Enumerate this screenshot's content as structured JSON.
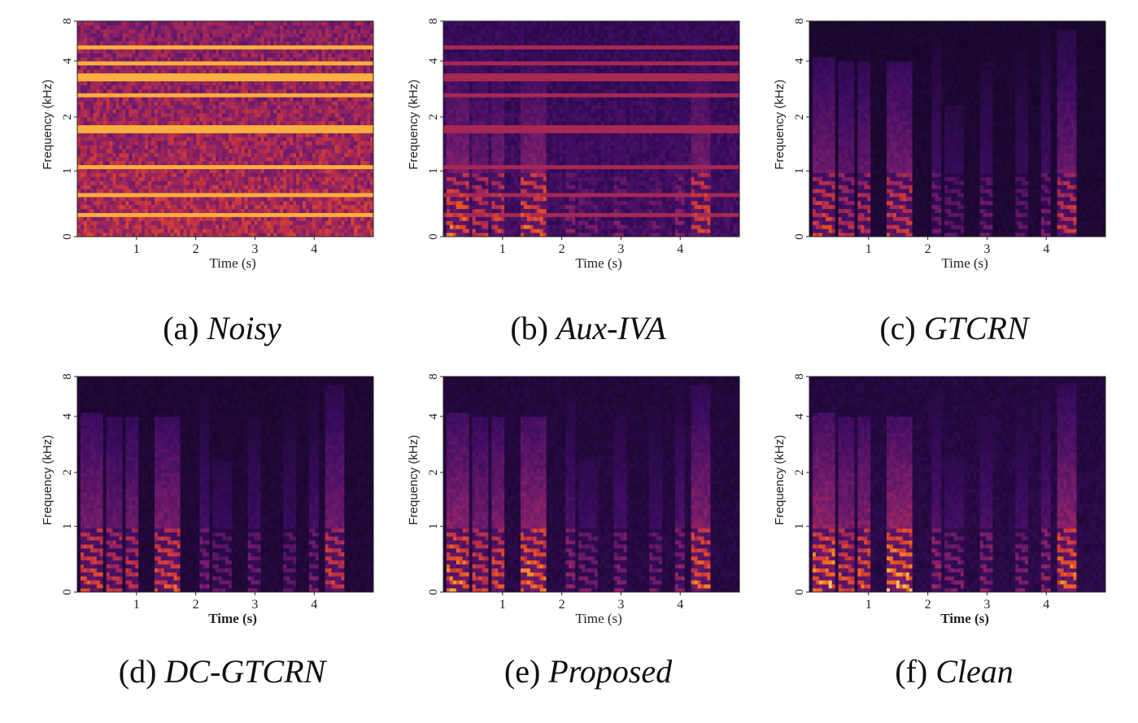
{
  "figure": {
    "panels": [
      {
        "id": "a",
        "label": "(a)",
        "method": "Noisy",
        "xlabel": "Time (s)",
        "ylabel": "Frequency (kHz)",
        "xlabel_bold": false,
        "xticks": [
          "1",
          "2",
          "3",
          "4"
        ],
        "yticks": [
          "0",
          "1",
          "2",
          "4",
          "8"
        ],
        "noise_level": 0.78,
        "speech_level": 0.35,
        "hum_lines": true
      },
      {
        "id": "b",
        "label": "(b)",
        "method": "Aux-IVA",
        "xlabel": "Time (s)",
        "ylabel": "Frequency (kHz)",
        "xlabel_bold": false,
        "xticks": [
          "1",
          "2",
          "3",
          "4"
        ],
        "yticks": [
          "0",
          "1",
          "2",
          "4",
          "8"
        ],
        "noise_level": 0.33,
        "speech_level": 0.85,
        "hum_lines": true
      },
      {
        "id": "c",
        "label": "(c)",
        "method": "GTCRN",
        "xlabel": "Time (s)",
        "ylabel": "Frequency (kHz)",
        "xlabel_bold": false,
        "xticks": [
          "1",
          "2",
          "3",
          "4"
        ],
        "yticks": [
          "0",
          "1",
          "2",
          "4",
          "8"
        ],
        "noise_level": 0.12,
        "speech_level": 0.75,
        "hum_lines": false
      },
      {
        "id": "d",
        "label": "(d)",
        "method": "DC-GTCRN",
        "xlabel": "Time (s)",
        "ylabel": "Frequency (kHz)",
        "xlabel_bold": true,
        "xticks": [
          "1",
          "2",
          "3",
          "4"
        ],
        "yticks": [
          "0",
          "1",
          "2",
          "4",
          "8"
        ],
        "noise_level": 0.14,
        "speech_level": 0.8,
        "hum_lines": false
      },
      {
        "id": "e",
        "label": "(e)",
        "method": "Proposed",
        "xlabel": "Time (s)",
        "ylabel": "Frequency (kHz)",
        "xlabel_bold": false,
        "xticks": [
          "1",
          "2",
          "3",
          "4"
        ],
        "yticks": [
          "0",
          "1",
          "2",
          "4",
          "8"
        ],
        "noise_level": 0.18,
        "speech_level": 0.9,
        "hum_lines": false
      },
      {
        "id": "f",
        "label": "(f)",
        "method": "Clean",
        "xlabel": "Time (s)",
        "ylabel": "Frequency (kHz)",
        "xlabel_bold": true,
        "xticks": [
          "1",
          "2",
          "3",
          "4"
        ],
        "yticks": [
          "0",
          "1",
          "2",
          "4",
          "8"
        ],
        "noise_level": 0.2,
        "speech_level": 0.95,
        "hum_lines": false
      }
    ]
  },
  "chart_data": [
    {
      "type": "heatmap",
      "title": "(a) Noisy",
      "xlabel": "Time (s)",
      "ylabel": "Frequency (kHz)",
      "xlim": [
        0,
        5
      ],
      "ylim": [
        0,
        8
      ],
      "x_ticks": [
        1,
        2,
        3,
        4
      ],
      "y_ticks": [
        0,
        1,
        2,
        4,
        8
      ],
      "y_scale": "log-like (mel)",
      "colormap": "inferno"
    },
    {
      "type": "heatmap",
      "title": "(b) Aux-IVA",
      "xlabel": "Time (s)",
      "ylabel": "Frequency (kHz)",
      "xlim": [
        0,
        5
      ],
      "ylim": [
        0,
        8
      ],
      "x_ticks": [
        1,
        2,
        3,
        4
      ],
      "y_ticks": [
        0,
        1,
        2,
        4,
        8
      ],
      "y_scale": "log-like (mel)",
      "colormap": "inferno"
    },
    {
      "type": "heatmap",
      "title": "(c) GTCRN",
      "xlabel": "Time (s)",
      "ylabel": "Frequency (kHz)",
      "xlim": [
        0,
        5
      ],
      "ylim": [
        0,
        8
      ],
      "x_ticks": [
        1,
        2,
        3,
        4
      ],
      "y_ticks": [
        0,
        1,
        2,
        4,
        8
      ],
      "y_scale": "log-like (mel)",
      "colormap": "inferno"
    },
    {
      "type": "heatmap",
      "title": "(d) DC-GTCRN",
      "xlabel": "Time (s)",
      "ylabel": "Frequency (kHz)",
      "xlim": [
        0,
        5
      ],
      "ylim": [
        0,
        8
      ],
      "x_ticks": [
        1,
        2,
        3,
        4
      ],
      "y_ticks": [
        0,
        1,
        2,
        4,
        8
      ],
      "y_scale": "log-like (mel)",
      "colormap": "inferno"
    },
    {
      "type": "heatmap",
      "title": "(e) Proposed",
      "xlabel": "Time (s)",
      "ylabel": "Frequency (kHz)",
      "xlim": [
        0,
        5
      ],
      "ylim": [
        0,
        8
      ],
      "x_ticks": [
        1,
        2,
        3,
        4
      ],
      "y_ticks": [
        0,
        1,
        2,
        4,
        8
      ],
      "y_scale": "log-like (mel)",
      "colormap": "inferno"
    },
    {
      "type": "heatmap",
      "title": "(f) Clean",
      "xlabel": "Time (s)",
      "ylabel": "Frequency (kHz)",
      "xlim": [
        0,
        5
      ],
      "ylim": [
        0,
        8
      ],
      "x_ticks": [
        1,
        2,
        3,
        4
      ],
      "y_ticks": [
        0,
        1,
        2,
        4,
        8
      ],
      "y_scale": "log-like (mel)",
      "colormap": "inferno"
    }
  ],
  "speech_events": [
    {
      "t0": 0.05,
      "t1": 0.45,
      "strength": 1.0,
      "max_khz": 4.5
    },
    {
      "t0": 0.5,
      "t1": 0.75,
      "strength": 0.85,
      "max_khz": 4.0
    },
    {
      "t0": 0.8,
      "t1": 1.05,
      "strength": 0.9,
      "max_khz": 4.0
    },
    {
      "t0": 1.3,
      "t1": 1.75,
      "strength": 1.0,
      "max_khz": 4.0
    },
    {
      "t0": 2.05,
      "t1": 2.25,
      "strength": 0.6,
      "max_khz": 6.5
    },
    {
      "t0": 2.3,
      "t1": 2.6,
      "strength": 0.5,
      "max_khz": 2.5
    },
    {
      "t0": 2.9,
      "t1": 3.1,
      "strength": 0.55,
      "max_khz": 4.0
    },
    {
      "t0": 3.5,
      "t1": 3.7,
      "strength": 0.5,
      "max_khz": 5.0
    },
    {
      "t0": 3.9,
      "t1": 4.05,
      "strength": 0.6,
      "max_khz": 7.0
    },
    {
      "t0": 4.2,
      "t1": 4.5,
      "strength": 0.95,
      "max_khz": 7.0
    }
  ],
  "colors": {
    "low": "#0d0518",
    "mid": "#7a1d6c",
    "high": "#e3442a",
    "peak": "#fde39a"
  }
}
